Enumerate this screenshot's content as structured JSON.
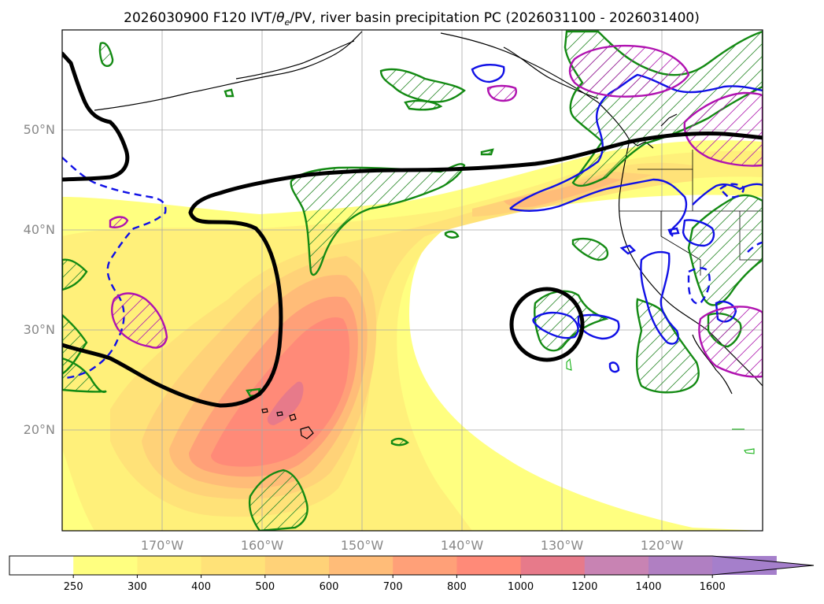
{
  "title": {
    "prefix": "2026030900 F120 IVT/",
    "theta": "θ",
    "sub": "e",
    "suffix": "/PV, river basin precipitation PC (2026031100 - 2026031400)"
  },
  "map": {
    "projection": "PlateCarree",
    "lon_range": [
      -180,
      -110
    ],
    "lat_range": [
      10,
      60
    ],
    "lat_labels": [
      "20°N",
      "30°N",
      "40°N",
      "50°N"
    ],
    "lat_values": [
      20,
      30,
      40,
      50
    ],
    "lon_labels": [
      "170°W",
      "160°W",
      "150°W",
      "140°W",
      "130°W",
      "120°W"
    ],
    "lon_values": [
      -170,
      -160,
      -150,
      -140,
      -130,
      -120
    ],
    "fields": [
      "IVT filled contours",
      "black PV contour",
      "green precipitation contours (hatched)",
      "blue theta-e contours (solid/dashed)",
      "magenta contours (hatched)"
    ]
  },
  "colorbar": {
    "levels": [
      "250",
      "300",
      "400",
      "500",
      "600",
      "700",
      "800",
      "1000",
      "1200",
      "1400",
      "1600"
    ],
    "colors": [
      "#ffffff",
      "#ffff80",
      "#fff07a",
      "#ffe278",
      "#ffd278",
      "#ffbc78",
      "#ffa078",
      "#ff8a78",
      "#e77a8a",
      "#c883b3",
      "#b07fc2",
      "#a57fcb"
    ],
    "extend": "max"
  }
}
